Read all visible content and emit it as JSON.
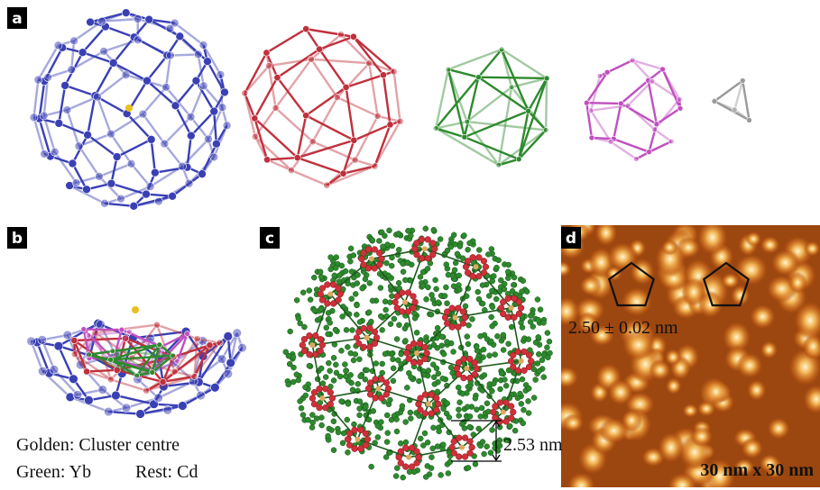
{
  "panels": [
    {
      "label": "a"
    },
    {
      "label": "b",
      "legend": [
        "Golden: Cluster centre",
        "Green: Yb",
        "Rest: Cd"
      ]
    },
    {
      "label": "c",
      "scale_bar": "2.53 nm"
    },
    {
      "label": "d",
      "annotation": "2.50 ± 0.02 nm",
      "field_of_view": "30 nm x 30 nm"
    }
  ]
}
